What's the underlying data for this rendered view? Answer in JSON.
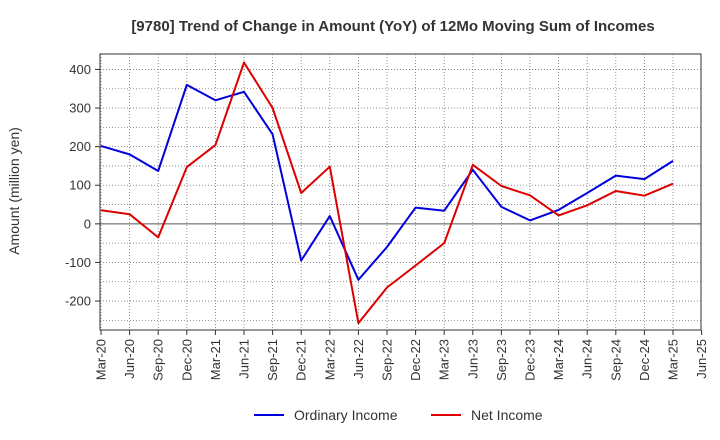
{
  "chart_data": {
    "type": "line",
    "title": "[9780]  Trend of Change in Amount (YoY) of 12Mo Moving Sum of Incomes",
    "ylabel": "Amount (million yen)",
    "xlabel": "",
    "ylim": [
      -275,
      440
    ],
    "yticks": [
      -200,
      -100,
      0,
      100,
      200,
      300,
      400
    ],
    "categories": [
      "Mar-20",
      "Jun-20",
      "Sep-20",
      "Dec-20",
      "Mar-21",
      "Jun-21",
      "Sep-21",
      "Dec-21",
      "Mar-22",
      "Jun-22",
      "Sep-22",
      "Dec-22",
      "Mar-23",
      "Jun-23",
      "Sep-23",
      "Dec-23",
      "Mar-24",
      "Jun-24",
      "Sep-24",
      "Dec-24",
      "Mar-25",
      "Jun-25"
    ],
    "grid": true,
    "legend_position": "bottom",
    "series": [
      {
        "name": "Ordinary Income",
        "color": "#0000dd",
        "values": [
          202,
          180,
          137,
          360,
          320,
          342,
          232,
          -95,
          20,
          -145,
          -60,
          42,
          34,
          140,
          44,
          9,
          36,
          80,
          125,
          116,
          163,
          null
        ]
      },
      {
        "name": "Net Income",
        "color": "#dd0000",
        "values": [
          35,
          25,
          -35,
          147,
          204,
          418,
          300,
          80,
          148,
          -257,
          -165,
          -108,
          -50,
          153,
          98,
          74,
          22,
          48,
          85,
          73,
          104,
          null
        ]
      }
    ]
  }
}
